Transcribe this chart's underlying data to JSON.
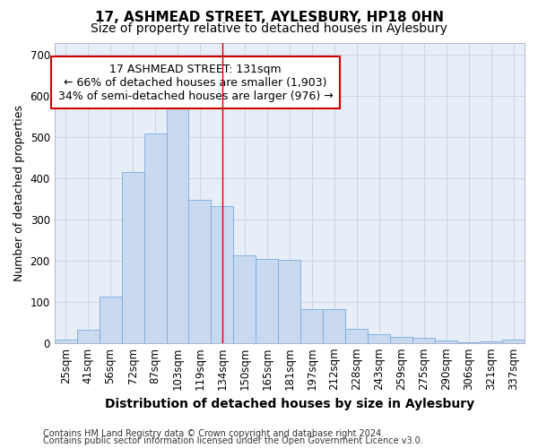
{
  "title": "17, ASHMEAD STREET, AYLESBURY, HP18 0HN",
  "subtitle": "Size of property relative to detached houses in Aylesbury",
  "xlabel": "Distribution of detached houses by size in Aylesbury",
  "ylabel": "Number of detached properties",
  "categories": [
    "25sqm",
    "41sqm",
    "56sqm",
    "72sqm",
    "87sqm",
    "103sqm",
    "119sqm",
    "134sqm",
    "150sqm",
    "165sqm",
    "181sqm",
    "197sqm",
    "212sqm",
    "228sqm",
    "243sqm",
    "259sqm",
    "275sqm",
    "290sqm",
    "306sqm",
    "321sqm",
    "337sqm"
  ],
  "values": [
    8,
    33,
    112,
    415,
    508,
    575,
    347,
    333,
    212,
    205,
    202,
    82,
    82,
    35,
    20,
    14,
    13,
    5,
    2,
    3,
    8
  ],
  "bar_color": "#c8d9f0",
  "bar_edge_color": "#7aabdb",
  "grid_color": "#c8d4e8",
  "vline_x": 7.0,
  "vline_color": "#cc0000",
  "annotation_text": "17 ASHMEAD STREET: 131sqm\n← 66% of detached houses are smaller (1,903)\n34% of semi-detached houses are larger (976) →",
  "annotation_box_facecolor": "#ffffff",
  "annotation_box_edgecolor": "#cc0000",
  "footer1": "Contains HM Land Registry data © Crown copyright and database right 2024.",
  "footer2": "Contains public sector information licensed under the Open Government Licence v3.0.",
  "ylim": [
    0,
    730
  ],
  "yticks": [
    0,
    100,
    200,
    300,
    400,
    500,
    600,
    700
  ],
  "bg_color": "#e8eef8",
  "title_fontsize": 11,
  "subtitle_fontsize": 10,
  "tick_fontsize": 8.5,
  "ylabel_fontsize": 9,
  "xlabel_fontsize": 10,
  "annotation_fontsize": 9,
  "footer_fontsize": 7
}
